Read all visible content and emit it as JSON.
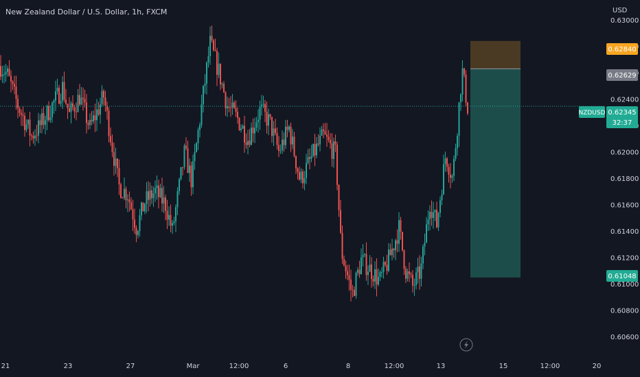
{
  "header": {
    "title": "New Zealand Dollar / U.S. Dollar, 1h, FXCM"
  },
  "axis": {
    "currency": "USD"
  },
  "colors": {
    "background": "#131722",
    "up": "#26a69a",
    "down": "#ef5350",
    "axis_text": "#d1d4dc",
    "target_zone": "#1d4d4a",
    "stop_zone": "#4a3a24",
    "entry_line": "#9598a1"
  },
  "price_badges": {
    "stop": "0.62840",
    "entry": "0.62629",
    "symbol": "NZDUSD",
    "current": "0.62345",
    "countdown": "32:37",
    "target": "0.61048"
  },
  "chart_data": {
    "type": "candlestick",
    "title": "New Zealand Dollar / U.S. Dollar, 1h, FXCM",
    "ylabel": "USD",
    "ylim": [
      0.6045,
      0.6315
    ],
    "y_ticks": [
      "0.63000",
      "0.62800",
      "0.62600",
      "0.62400",
      "0.62200",
      "0.62000",
      "0.61800",
      "0.61600",
      "0.61400",
      "0.61200",
      "0.61000",
      "0.60800",
      "0.60600"
    ],
    "x_ticks": [
      "21",
      "23",
      "27",
      "Mar",
      "12:00",
      "6",
      "8",
      "12:00",
      "13",
      "15",
      "12:00",
      "20"
    ],
    "current_price": 0.62345,
    "price_path": [
      [
        0,
        0.6265
      ],
      [
        10,
        0.6258
      ],
      [
        25,
        0.6235
      ],
      [
        45,
        0.6212
      ],
      [
        55,
        0.6218
      ],
      [
        75,
        0.6235
      ],
      [
        90,
        0.6249
      ],
      [
        100,
        0.6228
      ],
      [
        115,
        0.6242
      ],
      [
        130,
        0.6218
      ],
      [
        150,
        0.6242
      ],
      [
        160,
        0.6212
      ],
      [
        172,
        0.6174
      ],
      [
        185,
        0.6168
      ],
      [
        198,
        0.6142
      ],
      [
        210,
        0.6162
      ],
      [
        225,
        0.617
      ],
      [
        240,
        0.616
      ],
      [
        250,
        0.614
      ],
      [
        268,
        0.62
      ],
      [
        278,
        0.6178
      ],
      [
        292,
        0.6232
      ],
      [
        305,
        0.6282
      ],
      [
        318,
        0.626
      ],
      [
        330,
        0.6235
      ],
      [
        345,
        0.6225
      ],
      [
        360,
        0.621
      ],
      [
        378,
        0.6232
      ],
      [
        392,
        0.6222
      ],
      [
        405,
        0.62
      ],
      [
        420,
        0.6218
      ],
      [
        436,
        0.6178
      ],
      [
        455,
        0.6198
      ],
      [
        470,
        0.6212
      ],
      [
        488,
        0.6198
      ],
      [
        496,
        0.6125
      ],
      [
        512,
        0.6092
      ],
      [
        525,
        0.6118
      ],
      [
        540,
        0.611
      ],
      [
        552,
        0.6102
      ],
      [
        565,
        0.6118
      ],
      [
        580,
        0.6142
      ],
      [
        590,
        0.611
      ],
      [
        600,
        0.6098
      ],
      [
        612,
        0.611
      ],
      [
        625,
        0.6162
      ],
      [
        635,
        0.6145
      ],
      [
        648,
        0.6198
      ],
      [
        658,
        0.618
      ],
      [
        665,
        0.622
      ],
      [
        672,
        0.6262
      ],
      [
        680,
        0.6234
      ]
    ],
    "position": {
      "type": "long",
      "stop": 0.6284,
      "entry": 0.62629,
      "target": 0.61048
    }
  }
}
